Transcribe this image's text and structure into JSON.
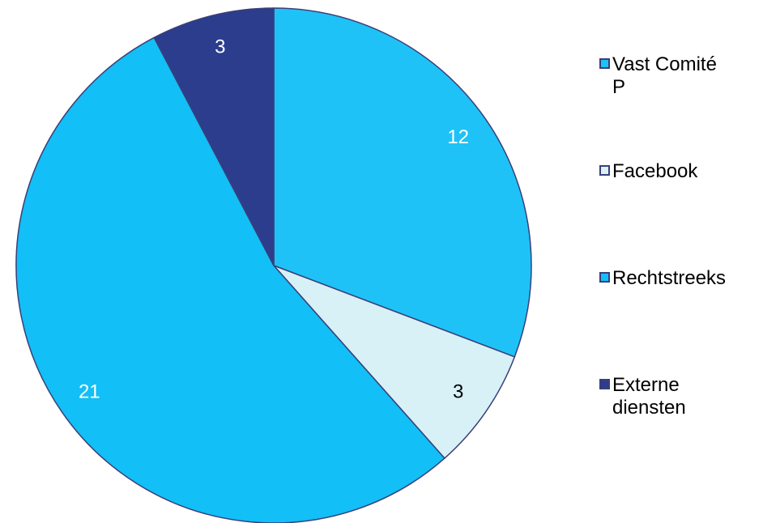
{
  "chart_data": {
    "type": "pie",
    "categories": [
      "Vast Comité P",
      "Facebook",
      "Rechtstreeks",
      "Externe diensten"
    ],
    "values": [
      12,
      3,
      21,
      3
    ],
    "colors": [
      "#1ec2f7",
      "#d8f1f6",
      "#12bff6",
      "#2c3d8e"
    ],
    "label_colors": [
      "#ffffff",
      "#000000",
      "#ffffff",
      "#ffffff"
    ],
    "legend": "right"
  }
}
